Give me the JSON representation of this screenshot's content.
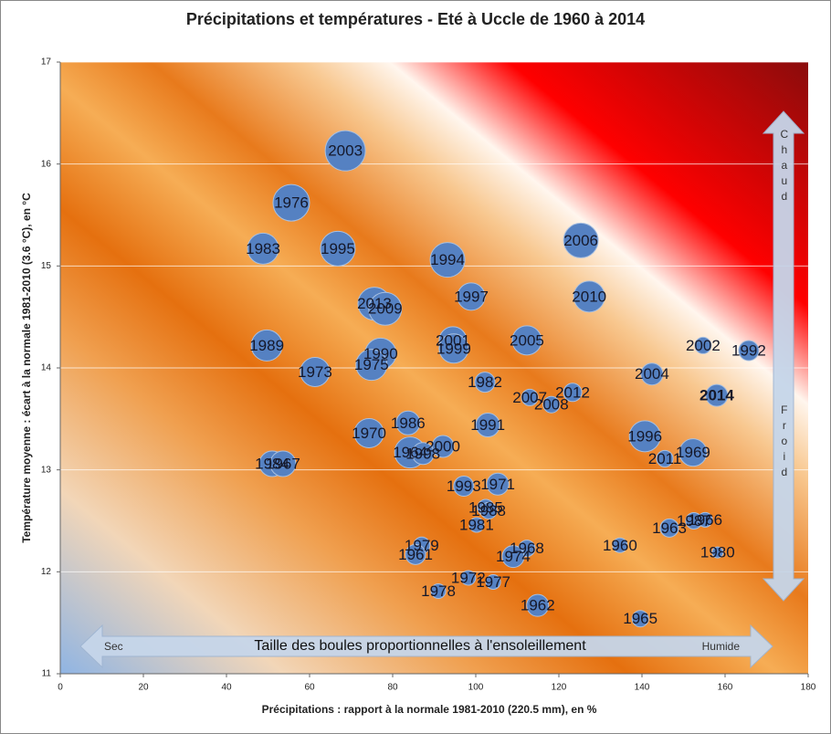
{
  "chart_data": {
    "type": "bubble",
    "title": "Précipitations et températures - Eté à Uccle de 1960 à 2014",
    "x_label": "Précipitations : rapport à la normale 1981-2010 (220.5 mm), en %",
    "y_label": "Température moyenne : écart à la normale 1981-2010 (3.6 °C), en °C",
    "annotations": {
      "size_note": "Taille des boules proportionnelles à l'ensoleillement",
      "left": "Sec",
      "right": "Humide",
      "top": "Chaud",
      "bottom": "Froid"
    },
    "xlim": [
      0,
      180
    ],
    "xticks": [
      0,
      20,
      40,
      60,
      80,
      100,
      120,
      140,
      160,
      180
    ],
    "ylim": [
      11,
      17
    ],
    "yticks": [
      11,
      12,
      13,
      14,
      15,
      16,
      17
    ],
    "grid": true,
    "color": "#5581c2",
    "labels": [
      "2003",
      "1976",
      "1983",
      "1995",
      "1994",
      "2006",
      "2013",
      "2009",
      "1997",
      "2010",
      "1989",
      "1973",
      "1990",
      "1975",
      "2001",
      "1999",
      "2005",
      "2002",
      "1992",
      "2004",
      "1982",
      "2007",
      "2012",
      "2008",
      "2014",
      "1986",
      "1991",
      "1970",
      "1996",
      "1969",
      "2011",
      "2000",
      "1964",
      "1998",
      "1984",
      "1967",
      "1971",
      "1993",
      "1985",
      "1988",
      "1981",
      "1963",
      "1987",
      "1966",
      "1960",
      "1980",
      "1979",
      "1961",
      "1968",
      "1974",
      "1972",
      "1977",
      "1978",
      "1962",
      "1965"
    ],
    "x": [
      68.6,
      55.6,
      48.8,
      66.8,
      93.2,
      125.3,
      75.6,
      78.2,
      98.9,
      127.3,
      49.7,
      61.3,
      77.1,
      74.9,
      94.5,
      94.7,
      112.3,
      154.7,
      165.7,
      142.4,
      102.2,
      113.0,
      123.3,
      118.2,
      158.0,
      83.7,
      102.9,
      74.3,
      140.7,
      152.3,
      145.5,
      92.1,
      84.2,
      87.3,
      51.0,
      53.6,
      105.3,
      97.1,
      102.4,
      103.1,
      100.2,
      146.6,
      152.5,
      155.2,
      134.7,
      158.2,
      87.0,
      85.5,
      112.3,
      109.0,
      98.2,
      104.2,
      91.0,
      114.9,
      139.6
    ],
    "values": [
      16.13,
      15.62,
      15.17,
      15.17,
      15.06,
      15.25,
      14.63,
      14.58,
      14.7,
      14.7,
      14.22,
      13.96,
      14.14,
      14.03,
      14.27,
      14.19,
      14.27,
      14.22,
      14.17,
      13.94,
      13.86,
      13.71,
      13.76,
      13.64,
      13.73,
      13.46,
      13.44,
      13.36,
      13.33,
      13.17,
      13.11,
      13.23,
      13.17,
      13.16,
      13.06,
      13.06,
      12.86,
      12.84,
      12.63,
      12.6,
      12.46,
      12.43,
      12.5,
      12.51,
      12.26,
      12.19,
      12.26,
      12.17,
      12.23,
      12.15,
      11.94,
      11.9,
      11.81,
      11.67,
      11.54
    ],
    "sizes": [
      22,
      20,
      17,
      19,
      19,
      19,
      18,
      18,
      15,
      17,
      17,
      16,
      17,
      17,
      15,
      16,
      16,
      9,
      11,
      12,
      11,
      9,
      10,
      9,
      12,
      13,
      13,
      16,
      17,
      15,
      9,
      12,
      17,
      12,
      14,
      14,
      12,
      11,
      9,
      9,
      8,
      10,
      9,
      8,
      8,
      6,
      9,
      11,
      9,
      12,
      8,
      8,
      8,
      12,
      9
    ],
    "label_colors": [
      "#15182a",
      "#15182a",
      "#15182a",
      "#15182a",
      "#15182a",
      "#15182a",
      "#15182a",
      "#15182a",
      "#15182a",
      "#15182a",
      "#15182a",
      "#15182a",
      "#15182a",
      "#15182a",
      "#15182a",
      "#15182a",
      "#15182a",
      "#15182a",
      "#15182a",
      "#15182a",
      "#15182a",
      "#15182a",
      "#15182a",
      "#15182a",
      "#ffff00",
      "#15182a",
      "#15182a",
      "#15182a",
      "#15182a",
      "#15182a",
      "#15182a",
      "#15182a",
      "#15182a",
      "#15182a",
      "#15182a",
      "#15182a",
      "#15182a",
      "#15182a",
      "#15182a",
      "#15182a",
      "#15182a",
      "#15182a",
      "#15182a",
      "#15182a",
      "#15182a",
      "#15182a",
      "#15182a",
      "#15182a",
      "#15182a",
      "#15182a",
      "#15182a",
      "#15182a",
      "#15182a",
      "#15182a",
      "#15182a"
    ]
  }
}
